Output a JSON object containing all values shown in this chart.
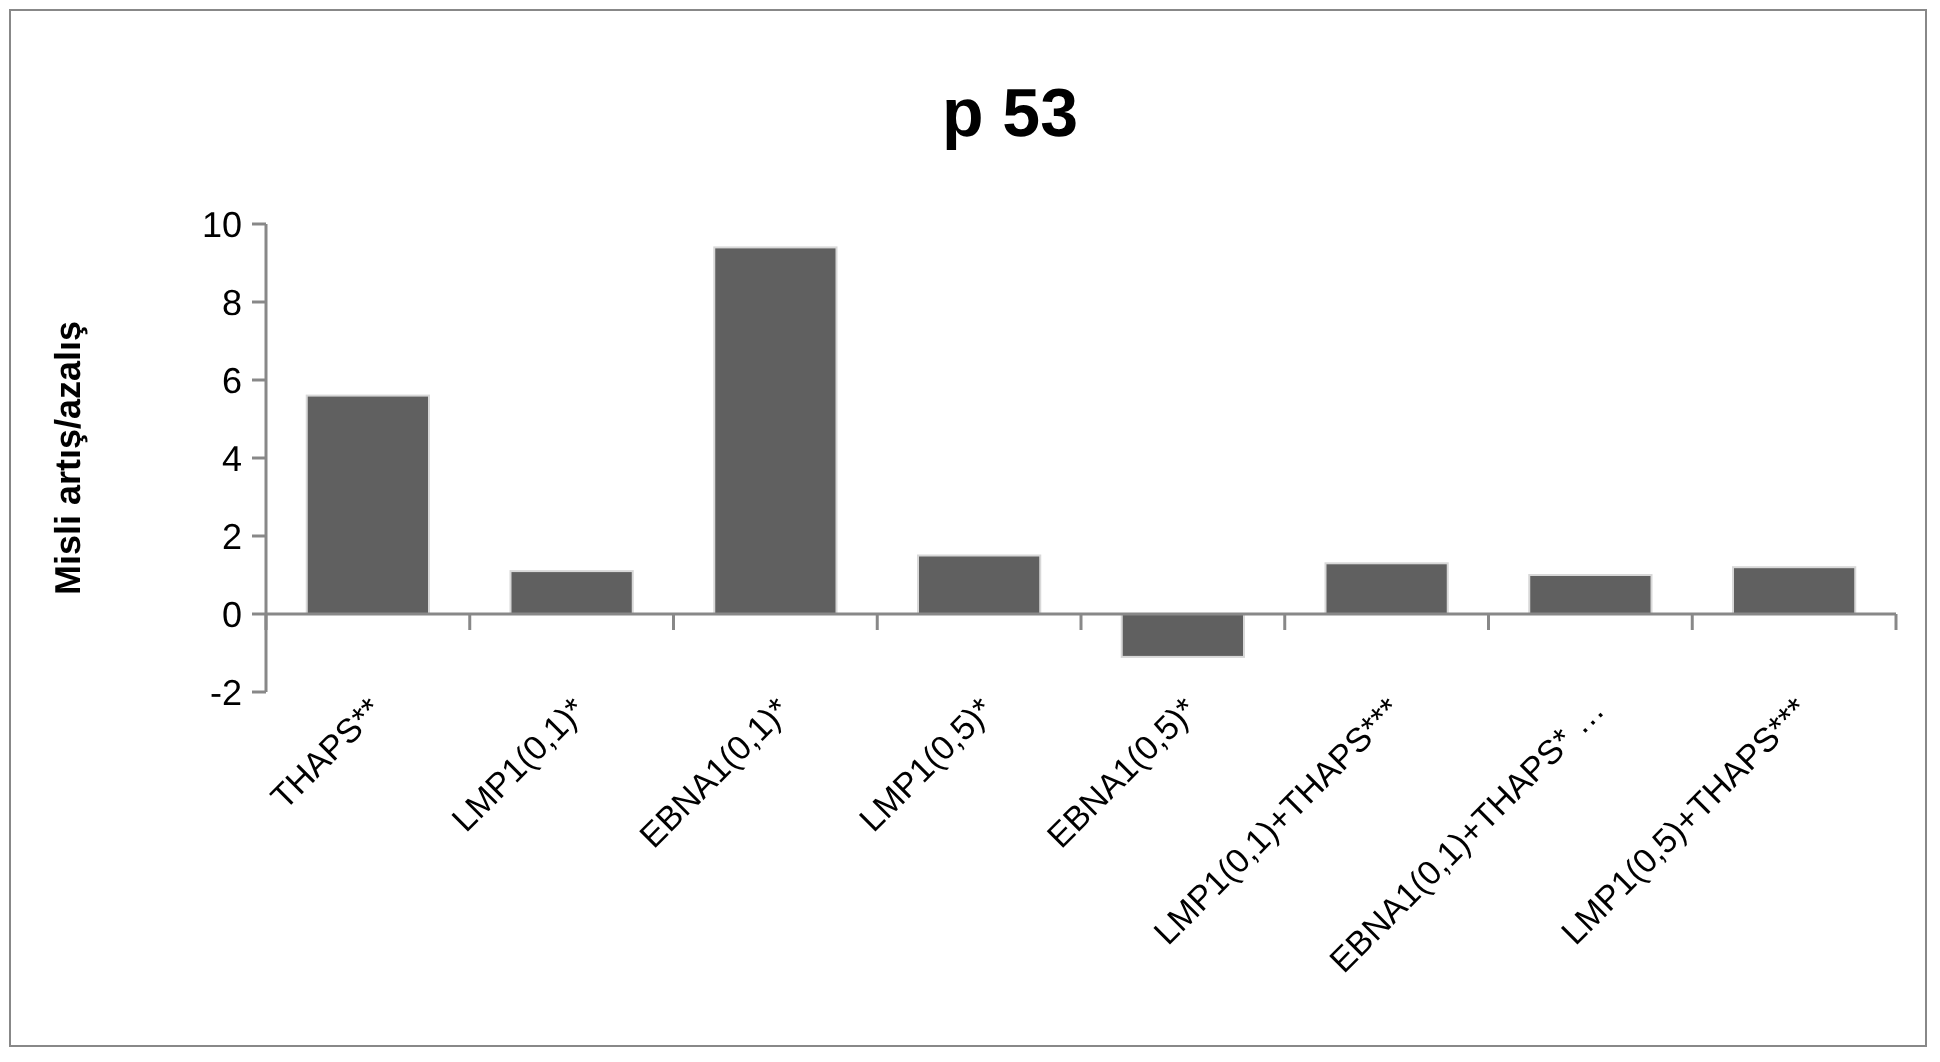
{
  "chart_data": {
    "type": "bar",
    "title": "p 53",
    "ylabel": "Misli artış/azalış",
    "categories": [
      "THAPS**",
      "LMP1(0,1)*",
      "EBNA1(0,1)*",
      "LMP1(0,5)*",
      "EBNA1(0,5)*",
      "LMP1(0,1)+THAPS***",
      "EBNA1(0,1)+THAPS* …",
      "LMP1(0,5)+THAPS***"
    ],
    "values": [
      5.6,
      1.1,
      9.4,
      1.5,
      -1.1,
      1.3,
      1.0,
      1.2
    ],
    "color": "#606060",
    "ylim": [
      -2,
      10
    ],
    "yticks": [
      -2,
      0,
      2,
      4,
      6,
      8,
      10
    ]
  }
}
